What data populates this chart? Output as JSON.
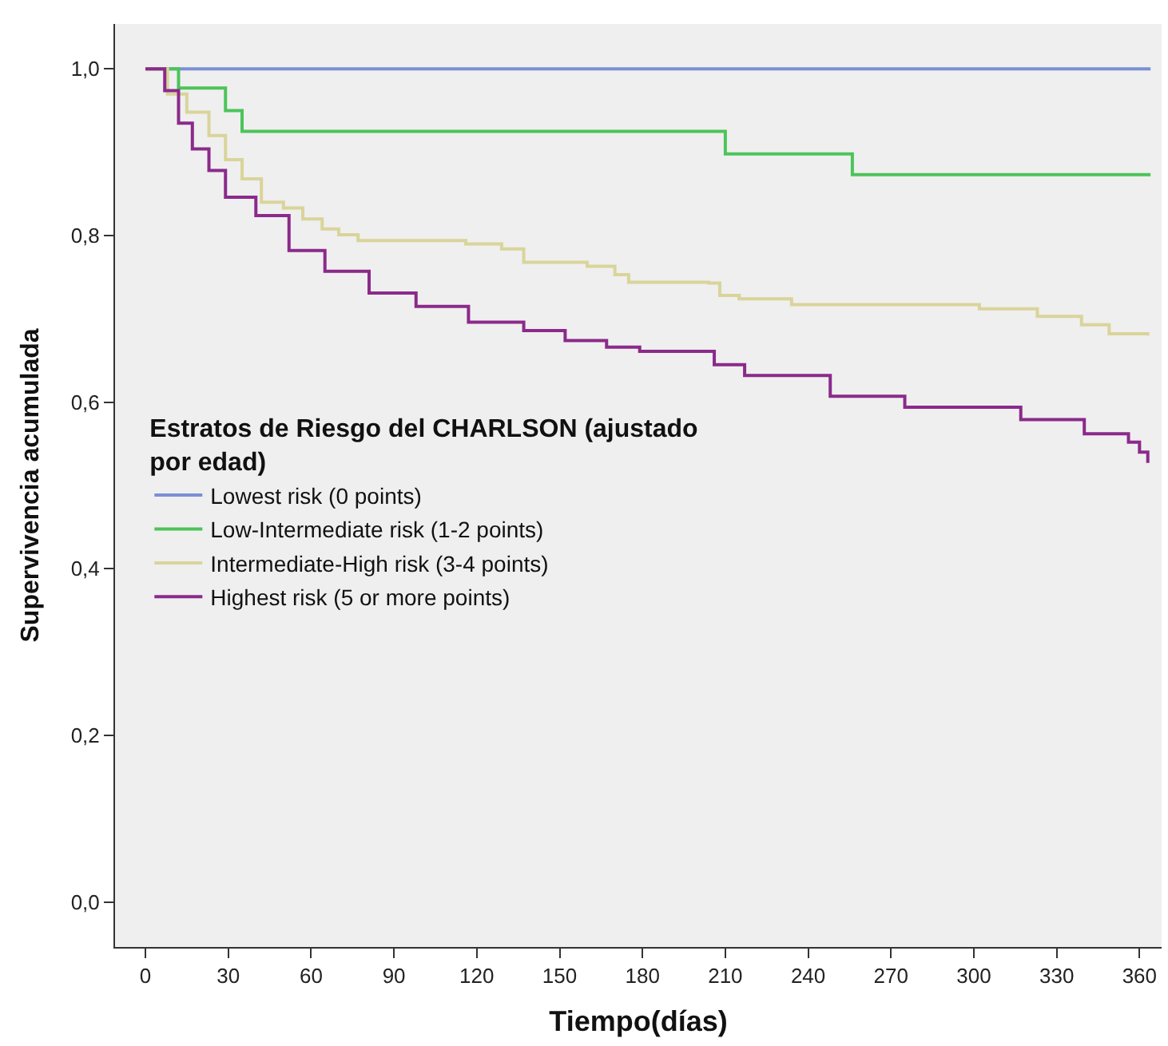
{
  "chart_data": {
    "type": "step",
    "xlabel": "Tiempo(días)",
    "ylabel": "Supervivencia acumulada",
    "legend_title": "Estratos de Riesgo del CHARLSON (ajustado\npor edad)",
    "xlim": [
      -11,
      368
    ],
    "xticks": [
      0,
      30,
      60,
      90,
      120,
      150,
      180,
      210,
      240,
      270,
      300,
      330,
      360
    ],
    "ylim": [
      -0.054,
      1.054
    ],
    "yticks": [
      {
        "value": 0,
        "label": "0,0"
      },
      {
        "value": 0.2,
        "label": "0,2"
      },
      {
        "value": 0.4,
        "label": "0,4"
      },
      {
        "value": 0.6,
        "label": "0,6"
      },
      {
        "value": 0.8,
        "label": "0,8"
      },
      {
        "value": 1,
        "label": "1,0"
      }
    ],
    "grid": false,
    "legend": "left",
    "marker": "none",
    "line_style": "solid",
    "series": [
      {
        "name": "Lowest risk (0 points)",
        "color": "#7b8fd6",
        "x": [
          0,
          364
        ],
        "values": [
          1.0,
          1.0
        ]
      },
      {
        "name": "Low-Intermediate risk (1-2 points)",
        "color": "#4cc45a",
        "x": [
          0,
          12,
          29,
          35,
          210,
          256,
          364
        ],
        "values": [
          1.0,
          0.977,
          0.95,
          0.925,
          0.898,
          0.873,
          0.873
        ]
      },
      {
        "name": "Intermediate-High risk (3-4 points)",
        "color": "#d9d49a",
        "x": [
          0,
          8,
          15,
          23,
          29,
          35,
          42,
          50,
          57,
          64,
          70,
          77,
          116,
          129,
          137,
          160,
          170,
          175,
          204,
          208,
          215,
          234,
          302,
          323,
          339,
          349,
          363
        ],
        "values": [
          1.0,
          0.97,
          0.948,
          0.92,
          0.891,
          0.868,
          0.84,
          0.833,
          0.82,
          0.808,
          0.801,
          0.794,
          0.79,
          0.784,
          0.768,
          0.763,
          0.753,
          0.744,
          0.743,
          0.728,
          0.724,
          0.717,
          0.712,
          0.703,
          0.693,
          0.682,
          0.68
        ]
      },
      {
        "name": "Highest risk (5 or more points)",
        "color": "#8b2a8b",
        "x": [
          0,
          7,
          12,
          17,
          23,
          29,
          40,
          52,
          65,
          81,
          98,
          117,
          137,
          152,
          167,
          179,
          206,
          217,
          248,
          275,
          317,
          340,
          356,
          360,
          363
        ],
        "values": [
          1.0,
          0.974,
          0.935,
          0.904,
          0.878,
          0.846,
          0.824,
          0.782,
          0.757,
          0.731,
          0.715,
          0.696,
          0.686,
          0.674,
          0.666,
          0.661,
          0.645,
          0.632,
          0.607,
          0.594,
          0.579,
          0.562,
          0.552,
          0.54,
          0.527
        ]
      }
    ]
  }
}
